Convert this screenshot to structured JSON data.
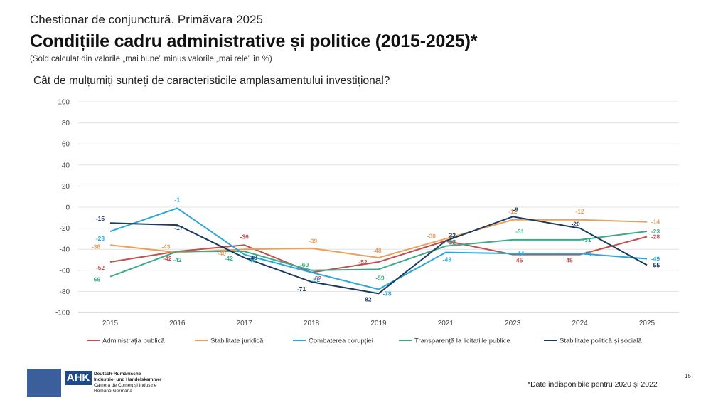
{
  "header": {
    "top_line": "Chestionar de conjunctură. Primăvara 2025",
    "title": "Condițiile cadru administrative și politice (2015-2025)*",
    "note": "(Sold calculat din valorile „mai bune” minus valorile „mai rele” în %)",
    "question": "Cât de mulțumiți sunteți de caracteristicile amplasamentului investițional?"
  },
  "footer": {
    "note": "*Date indisponibile pentru 2020 și 2022",
    "page_number": "15",
    "logo_text": "AHK",
    "org_line1": "Deutsch-Rumänische",
    "org_line2": "Industrie- und Handelskammer",
    "org_line3": "Camera de Comerț și Industrie",
    "org_line4": "Româno-Germană"
  },
  "chart_data": {
    "type": "line",
    "categories": [
      "2015",
      "2016",
      "2017",
      "2018",
      "2019",
      "2021",
      "2023",
      "2024",
      "2025"
    ],
    "ylim": [
      -100,
      100
    ],
    "yticks": [
      100,
      80,
      60,
      40,
      20,
      0,
      -20,
      -40,
      -60,
      -80,
      -100
    ],
    "grid": true,
    "legend_position": "bottom",
    "series": [
      {
        "name": "Administrația publică",
        "color": "#c0504d",
        "values": [
          -52,
          -42,
          -36,
          -62,
          -52,
          -32,
          -45,
          -45,
          -28
        ]
      },
      {
        "name": "Stabilitate juridică",
        "color": "#e8a05a",
        "values": [
          -36,
          -43,
          -40,
          -39,
          -48,
          -30,
          -12,
          -12,
          -14
        ]
      },
      {
        "name": "Combaterea corupției",
        "color": "#2aa8d8",
        "values": [
          -23,
          -1,
          -45,
          -62,
          -78,
          -43,
          -44,
          -44,
          -49
        ]
      },
      {
        "name": "Transparență la licitațiile publice",
        "color": "#3aaa8a",
        "values": [
          -66,
          -42,
          -42,
          -60,
          -59,
          -37,
          -31,
          -31,
          -23
        ]
      },
      {
        "name": "Stabilitate politică și socială",
        "color": "#1c3a5e",
        "values": [
          -15,
          -17,
          -48,
          -71,
          -82,
          -32,
          -9,
          -20,
          -55
        ]
      }
    ]
  }
}
